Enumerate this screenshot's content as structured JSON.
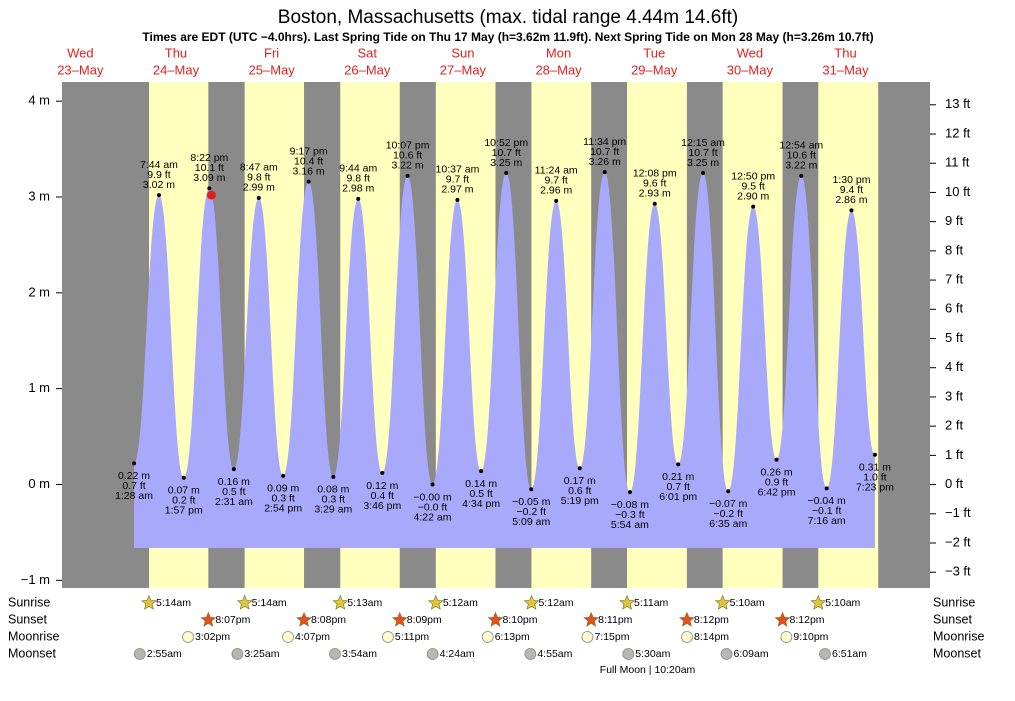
{
  "chart_data": {
    "type": "tide",
    "title": "Boston, Massachusetts (max. tidal range 4.44m 14.6ft)",
    "subtitle": "Times are EDT (UTC −4.0hrs). Last Spring Tide on Thu 17 May (h=3.62m 11.9ft). Next Spring Tide on Mon 28 May (h=3.26m 10.7ft)",
    "days": [
      "Wed",
      "Thu",
      "Fri",
      "Sat",
      "Sun",
      "Mon",
      "Tue",
      "Wed",
      "Thu"
    ],
    "dates": [
      "23–May",
      "24–May",
      "25–May",
      "26–May",
      "27–May",
      "28–May",
      "29–May",
      "30–May",
      "31–May"
    ],
    "header_color": "#e02020",
    "xlim": [
      7.4,
      225.2
    ],
    "ylim": [
      -1.08,
      4.2
    ],
    "yticks": [
      {
        "value": -1,
        "label": "−1 m"
      },
      {
        "value": 0,
        "label": "0 m"
      },
      {
        "value": 1,
        "label": "1 m"
      },
      {
        "value": 2,
        "label": "2 m"
      },
      {
        "value": 3,
        "label": "3 m"
      },
      {
        "value": 4,
        "label": "4 m"
      }
    ],
    "y2lim": [
      -3.54,
      13.78
    ],
    "y2ticks": [
      {
        "value": -3,
        "label": "−3 ft"
      },
      {
        "value": -2,
        "label": "−2 ft"
      },
      {
        "value": -1,
        "label": "−1 ft"
      },
      {
        "value": 0,
        "label": "0 ft"
      },
      {
        "value": 1,
        "label": "1 ft"
      },
      {
        "value": 2,
        "label": "2 ft"
      },
      {
        "value": 3,
        "label": "3 ft"
      },
      {
        "value": 4,
        "label": "4 ft"
      },
      {
        "value": 5,
        "label": "5 ft"
      },
      {
        "value": 6,
        "label": "6 ft"
      },
      {
        "value": 7,
        "label": "7 ft"
      },
      {
        "value": 8,
        "label": "8 ft"
      },
      {
        "value": 9,
        "label": "9 ft"
      },
      {
        "value": 10,
        "label": "10 ft"
      },
      {
        "value": 11,
        "label": "11 ft"
      },
      {
        "value": 12,
        "label": "12 ft"
      },
      {
        "value": 13,
        "label": "13 ft"
      }
    ],
    "area_color": "#a9a9fb",
    "night_color": "#8a8a8a",
    "day_color": "#ffffbe",
    "tides": {
      "x": [
        25.47,
        31.73,
        37.95,
        44.37,
        50.52,
        56.78,
        62.9,
        69.28,
        75.48,
        81.73,
        87.77,
        94.12,
        100.37,
        106.62,
        112.57,
        118.87,
        125.15,
        131.4,
        137.32,
        143.57,
        149.9,
        156.13,
        162.02,
        168.25,
        174.58,
        180.83,
        186.7,
        192.9,
        199.27,
        205.5,
        211.38
      ],
      "values": [
        0.22,
        3.02,
        0.07,
        3.09,
        0.16,
        2.99,
        0.09,
        3.16,
        0.08,
        2.98,
        0.12,
        3.22,
        0,
        2.97,
        0.14,
        3.25,
        -0.05,
        2.96,
        0.17,
        3.26,
        -0.08,
        2.93,
        0.21,
        3.25,
        -0.07,
        2.9,
        0.26,
        3.22,
        -0.04,
        2.86,
        0.31
      ],
      "value_labels": [
        "0.22 m",
        "3.02 m",
        "0.07 m",
        "3.09 m",
        "0.16 m",
        "2.99 m",
        "0.09 m",
        "3.16 m",
        "0.08 m",
        "2.98 m",
        "0.12 m",
        "3.22 m",
        "−0.00 m",
        "2.97 m",
        "0.14 m",
        "3.25 m",
        "−0.05 m",
        "2.96 m",
        "0.17 m",
        "3.26 m",
        "−0.08 m",
        "2.93 m",
        "0.21 m",
        "3.25 m",
        "−0.07 m",
        "2.90 m",
        "0.26 m",
        "3.22 m",
        "−0.04 m",
        "2.86 m",
        "0.31 m"
      ],
      "feet_labels": [
        "0.7 ft",
        "9.9 ft",
        "0.2 ft",
        "10.1 ft",
        "0.5 ft",
        "9.8 ft",
        "0.3 ft",
        "10.4 ft",
        "0.3 ft",
        "9.8 ft",
        "0.4 ft",
        "10.6 ft",
        "−0.0 ft",
        "9.7 ft",
        "0.5 ft",
        "10.7 ft",
        "−0.2 ft",
        "9.7 ft",
        "0.6 ft",
        "10.7 ft",
        "−0.3 ft",
        "9.6 ft",
        "0.7 ft",
        "10.7 ft",
        "−0.2 ft",
        "9.5 ft",
        "0.9 ft",
        "10.6 ft",
        "−0.1 ft",
        "9.4 ft",
        "1.0 ft"
      ],
      "time_labels": [
        "1:28 am",
        "7:44 am",
        "1:57 pm",
        "8:22 pm",
        "2:31 am",
        "8:47 am",
        "2:54 pm",
        "9:17 pm",
        "3:29 am",
        "9:44 am",
        "3:46 pm",
        "10:07 pm",
        "4:22 am",
        "10:37 am",
        "4:34 pm",
        "10:52 pm",
        "5:09 am",
        "11:24 am",
        "5:19 pm",
        "11:34 pm",
        "5:54 am",
        "12:08 pm",
        "6:01 pm",
        "12:15 am",
        "6:35 am",
        "12:50 pm",
        "6:42 pm",
        "12:54 am",
        "7:16 am",
        "1:30 pm",
        "7:23 pm"
      ]
    },
    "now": {
      "x": 44.9,
      "value": 3.02,
      "color": "#e02020"
    },
    "row_names": [
      "Sunrise",
      "Sunset",
      "Moonrise",
      "Moonset"
    ],
    "sunrise": {
      "x": [
        29.23,
        53.23,
        77.22,
        101.2,
        125.2,
        149.18,
        173.17,
        197.17
      ],
      "labels": [
        "5:14am",
        "5:14am",
        "5:13am",
        "5:12am",
        "5:12am",
        "5:11am",
        "5:10am",
        "5:10am"
      ],
      "color": "#d8c840"
    },
    "sunset": {
      "x": [
        44.12,
        68.13,
        92.15,
        116.17,
        140.18,
        164.2,
        188.2
      ],
      "labels": [
        "8:07pm",
        "8:08pm",
        "8:09pm",
        "8:10pm",
        "8:11pm",
        "8:12pm",
        "8:12pm"
      ],
      "color": "#e05020"
    },
    "moonrise": {
      "x": [
        39.03,
        64.12,
        89.18,
        114.22,
        139.25,
        164.23,
        189.17
      ],
      "labels": [
        "3:02pm",
        "4:07pm",
        "5:11pm",
        "6:13pm",
        "7:15pm",
        "8:14pm",
        "9:10pm"
      ],
      "color": "#fcfcd0"
    },
    "moonset": {
      "x": [
        26.92,
        51.42,
        75.9,
        100.4,
        124.92,
        149.5,
        174.15,
        198.85
      ],
      "labels": [
        "2:55am",
        "3:25am",
        "3:54am",
        "4:24am",
        "4:55am",
        "5:30am",
        "6:09am",
        "6:51am"
      ],
      "color": "#b8b8b0"
    },
    "moon_phase": {
      "text": "Full Moon | 10:20am",
      "x": 154.33
    }
  }
}
